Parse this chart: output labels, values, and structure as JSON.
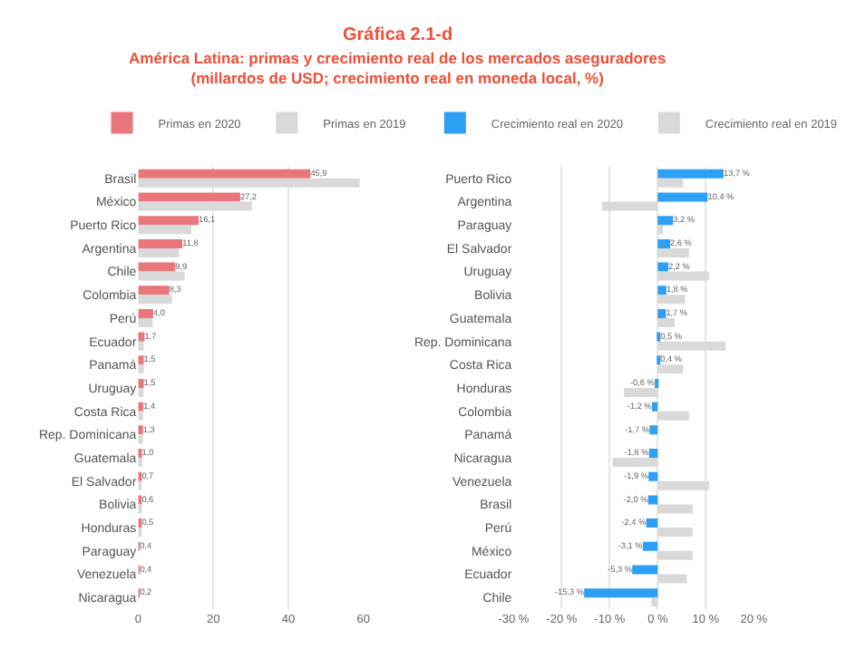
{
  "chart_data": [
    {
      "type": "bar",
      "orientation": "horizontal",
      "title": "Gráfica 2.1-d",
      "subtitle": "América Latina: primas y crecimiento real de los mercados aseguradores\n(millardos de USD; crecimiento real en moneda local, %)",
      "categories": [
        "Brasil",
        "México",
        "Puerto Rico",
        "Argentina",
        "Chile",
        "Colombia",
        "Perú",
        "Ecuador",
        "Panamá",
        "Uruguay",
        "Costa Rica",
        "Rep. Dominicana",
        "Guatemala",
        "El Salvador",
        "Bolivia",
        "Honduras",
        "Paraguay",
        "Venezuela",
        "Nicaragua"
      ],
      "series": [
        {
          "name": "Primas en 2020",
          "color": "#e8767b",
          "values": [
            45.9,
            27.2,
            16.1,
            11.8,
            9.9,
            8.3,
            4.0,
            1.7,
            1.5,
            1.5,
            1.4,
            1.3,
            1.0,
            0.7,
            0.6,
            0.5,
            0.4,
            0.4,
            0.2
          ],
          "value_labels": [
            "45,9",
            "27,2",
            "16,1",
            "11,8",
            "9,9",
            "8,3",
            "4,0",
            "1,7",
            "1,5",
            "1,5",
            "1,4",
            "1,3",
            "1,0",
            "0,7",
            "0,6",
            "0,5",
            "0,4",
            "0,4",
            "0,2"
          ]
        },
        {
          "name": "Primas en 2019",
          "color": "#d9d9d9",
          "values": [
            59,
            30.3,
            14.2,
            10.9,
            12.4,
            9.0,
            3.9,
            1.5,
            1.5,
            1.4,
            1.3,
            1.3,
            1.1,
            0.7,
            0.6,
            0.5,
            null,
            null,
            null
          ]
        }
      ],
      "xlim": [
        0,
        60
      ],
      "xticks": [
        0,
        20,
        40,
        60
      ],
      "grid": "x",
      "legend": "top"
    },
    {
      "type": "bar",
      "orientation": "horizontal",
      "categories": [
        "Puerto Rico",
        "Argentina",
        "Paraguay",
        "El Salvador",
        "Uruguay",
        "Bolivia",
        "Guatemala",
        "Rep. Dominicana",
        "Costa Rica",
        "Honduras",
        "Colombia",
        "Panamá",
        "Nicaragua",
        "Venezuela",
        "Brasil",
        "Perú",
        "México",
        "Ecuador",
        "Chile"
      ],
      "series": [
        {
          "name": "Crecimiento real en 2020",
          "color": "#2d9ff5",
          "values": [
            13.7,
            10.4,
            3.2,
            2.6,
            2.2,
            1.8,
            1.7,
            0.5,
            0.4,
            -0.6,
            -1.2,
            -1.7,
            -1.8,
            -1.9,
            -2.0,
            -2.4,
            -3.1,
            -5.3,
            -15.3
          ],
          "value_labels": [
            "13,7 %",
            "10,4 %",
            "3,2 %",
            "2,6 %",
            "2,2 %",
            "1,8 %",
            "1,7 %",
            "0,5 %",
            "0,4 %",
            "-0,6 %",
            "-1,2 %",
            "-1,7 %",
            "-1,8 %",
            "-1,9 %",
            "-2,0 %",
            "-2,4 %",
            "-3,1 %",
            "-5,3 %",
            "-15,3 %"
          ]
        },
        {
          "name": "Crecimiento real en 2019",
          "color": "#d9d9d9",
          "values": [
            5.3,
            -11.6,
            1.1,
            6.5,
            10.7,
            5.7,
            3.5,
            14.1,
            5.3,
            -7.0,
            6.5,
            null,
            -9.4,
            10.7,
            7.3,
            7.3,
            7.3,
            6.1,
            -1.3
          ]
        }
      ],
      "xlim": [
        -30,
        20
      ],
      "xticks": [
        {
          "value": -30,
          "label": "-30 %"
        },
        {
          "value": -20,
          "label": "-20 %"
        },
        {
          "value": -10,
          "label": "-10 %"
        },
        {
          "value": 0,
          "label": "0 %"
        },
        {
          "value": 10,
          "label": "10 %"
        },
        {
          "value": 20,
          "label": "20 %"
        }
      ],
      "grid": "x",
      "legend": "top"
    }
  ]
}
